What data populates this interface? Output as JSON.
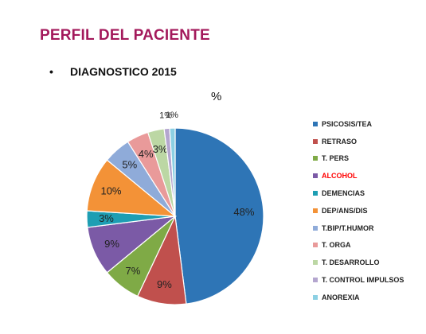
{
  "slide": {
    "title": "PERFIL DEL PACIENTE",
    "bullet": "•",
    "subtitle": "DIAGNOSTICO 2015"
  },
  "chart_data": {
    "type": "pie",
    "title": "%",
    "legend_position": "right",
    "categories": [
      "PSICOSIS/TEA",
      "RETRASO",
      "T. PERS",
      "ALCOHOL",
      "DEMENCIAS",
      "DEP/ANS/DIS",
      "T.BIP/T.HUMOR",
      "T. ORGA",
      "T. DESARROLLO",
      "T. CONTROL IMPULSOS",
      "ANOREXIA"
    ],
    "values": [
      48,
      9,
      7,
      9,
      3,
      10,
      5,
      4,
      3,
      1,
      1
    ],
    "labels": [
      "48%",
      "9%",
      "7%",
      "9%",
      "3%",
      "10%",
      "5%",
      "4%",
      "3%",
      "1%",
      "1%"
    ],
    "colors": [
      "#2e75b6",
      "#c0504d",
      "#7faa46",
      "#7b5aa6",
      "#1e9eb3",
      "#f39237",
      "#8fabd9",
      "#e99a9a",
      "#bcd7a4",
      "#b4a6cf",
      "#8cd0e3"
    ],
    "legend_text_colors": [
      "#222222",
      "#222222",
      "#222222",
      "#ff0000",
      "#222222",
      "#222222",
      "#222222",
      "#222222",
      "#222222",
      "#222222",
      "#222222"
    ]
  }
}
